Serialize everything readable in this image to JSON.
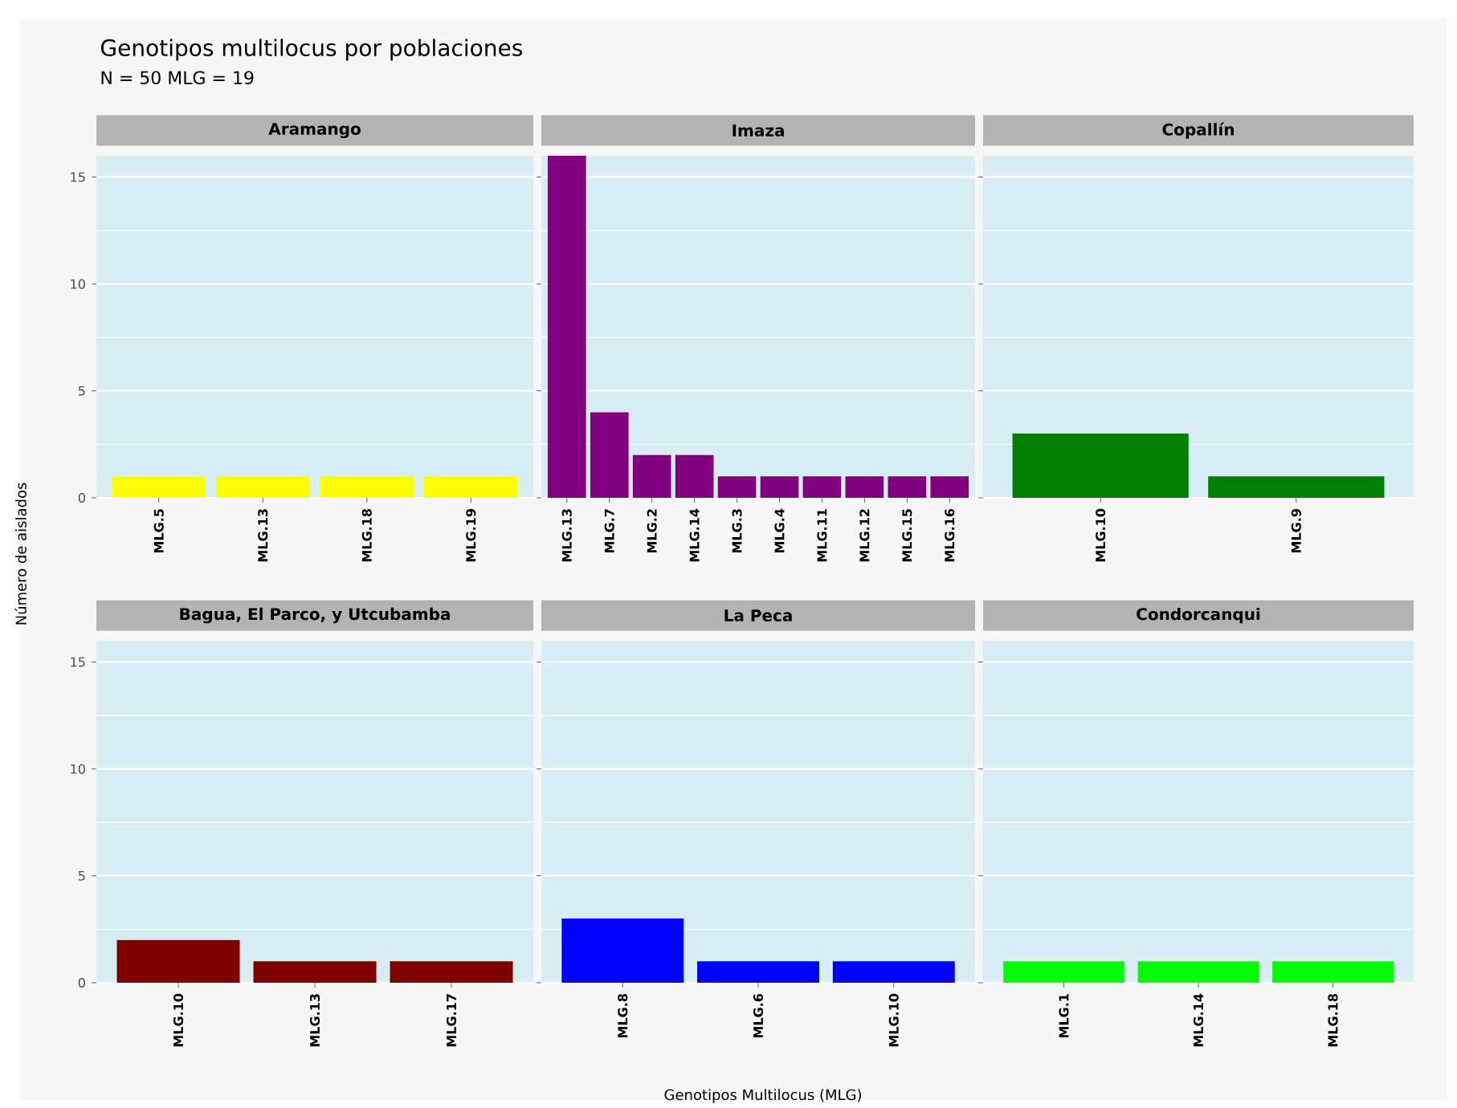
{
  "chart_data": [
    {
      "type": "bar",
      "title": "Aramango",
      "annotations": [
        "Genotipos multilocus por poblaciones",
        "N = 50 MLG = 19"
      ],
      "ylabel": "Número de aislados",
      "categories": [
        "MLG.5",
        "MLG.13",
        "MLG.18",
        "MLG.19"
      ],
      "values": [
        1,
        1,
        1,
        1
      ],
      "color": "#ffff00",
      "ylim": [
        0,
        16
      ],
      "yticks": [
        0,
        5,
        10,
        15
      ],
      "grid": "y"
    },
    {
      "type": "bar",
      "title": "Imaza",
      "categories": [
        "MLG.13",
        "MLG.7",
        "MLG.2",
        "MLG.14",
        "MLG.3",
        "MLG.4",
        "MLG.11",
        "MLG.12",
        "MLG.15",
        "MLG.16"
      ],
      "values": [
        16,
        4,
        2,
        2,
        1,
        1,
        1,
        1,
        1,
        1
      ],
      "color": "#800080",
      "ylim": [
        0,
        16
      ],
      "yticks": [
        0,
        5,
        10,
        15
      ],
      "grid": "y",
      "tick_labels": "x"
    },
    {
      "type": "bar",
      "title": "Copallín",
      "categories": [
        "MLG.10",
        "MLG.9"
      ],
      "values": [
        3,
        1
      ],
      "color": "#008000",
      "ylim": [
        0,
        16
      ],
      "yticks": [
        0,
        5,
        10,
        15
      ],
      "grid": "y",
      "tick_labels": "x"
    },
    {
      "type": "bar",
      "title": "Bagua, El Parco, y Utcubamba",
      "categories": [
        "MLG.10",
        "MLG.13",
        "MLG.17"
      ],
      "values": [
        2,
        1,
        1
      ],
      "color": "#800000",
      "ylim": [
        0,
        16
      ],
      "yticks": [
        0,
        5,
        10,
        15
      ],
      "grid": "y"
    },
    {
      "type": "bar",
      "title": "La Peca",
      "xlabel": "Genotipos Multilocus (MLG)",
      "categories": [
        "MLG.8",
        "MLG.6",
        "MLG.10"
      ],
      "values": [
        3,
        1,
        1
      ],
      "color": "#0000ff",
      "ylim": [
        0,
        16
      ],
      "yticks": [
        0,
        5,
        10,
        15
      ],
      "grid": "y",
      "tick_labels": "x"
    },
    {
      "type": "bar",
      "title": "Condorcanqui",
      "categories": [
        "MLG.1",
        "MLG.14",
        "MLG.18"
      ],
      "values": [
        1,
        1,
        1
      ],
      "color": "#00ff00",
      "ylim": [
        0,
        16
      ],
      "yticks": [
        0,
        5,
        10,
        15
      ],
      "grid": "y",
      "tick_labels": "x"
    }
  ]
}
